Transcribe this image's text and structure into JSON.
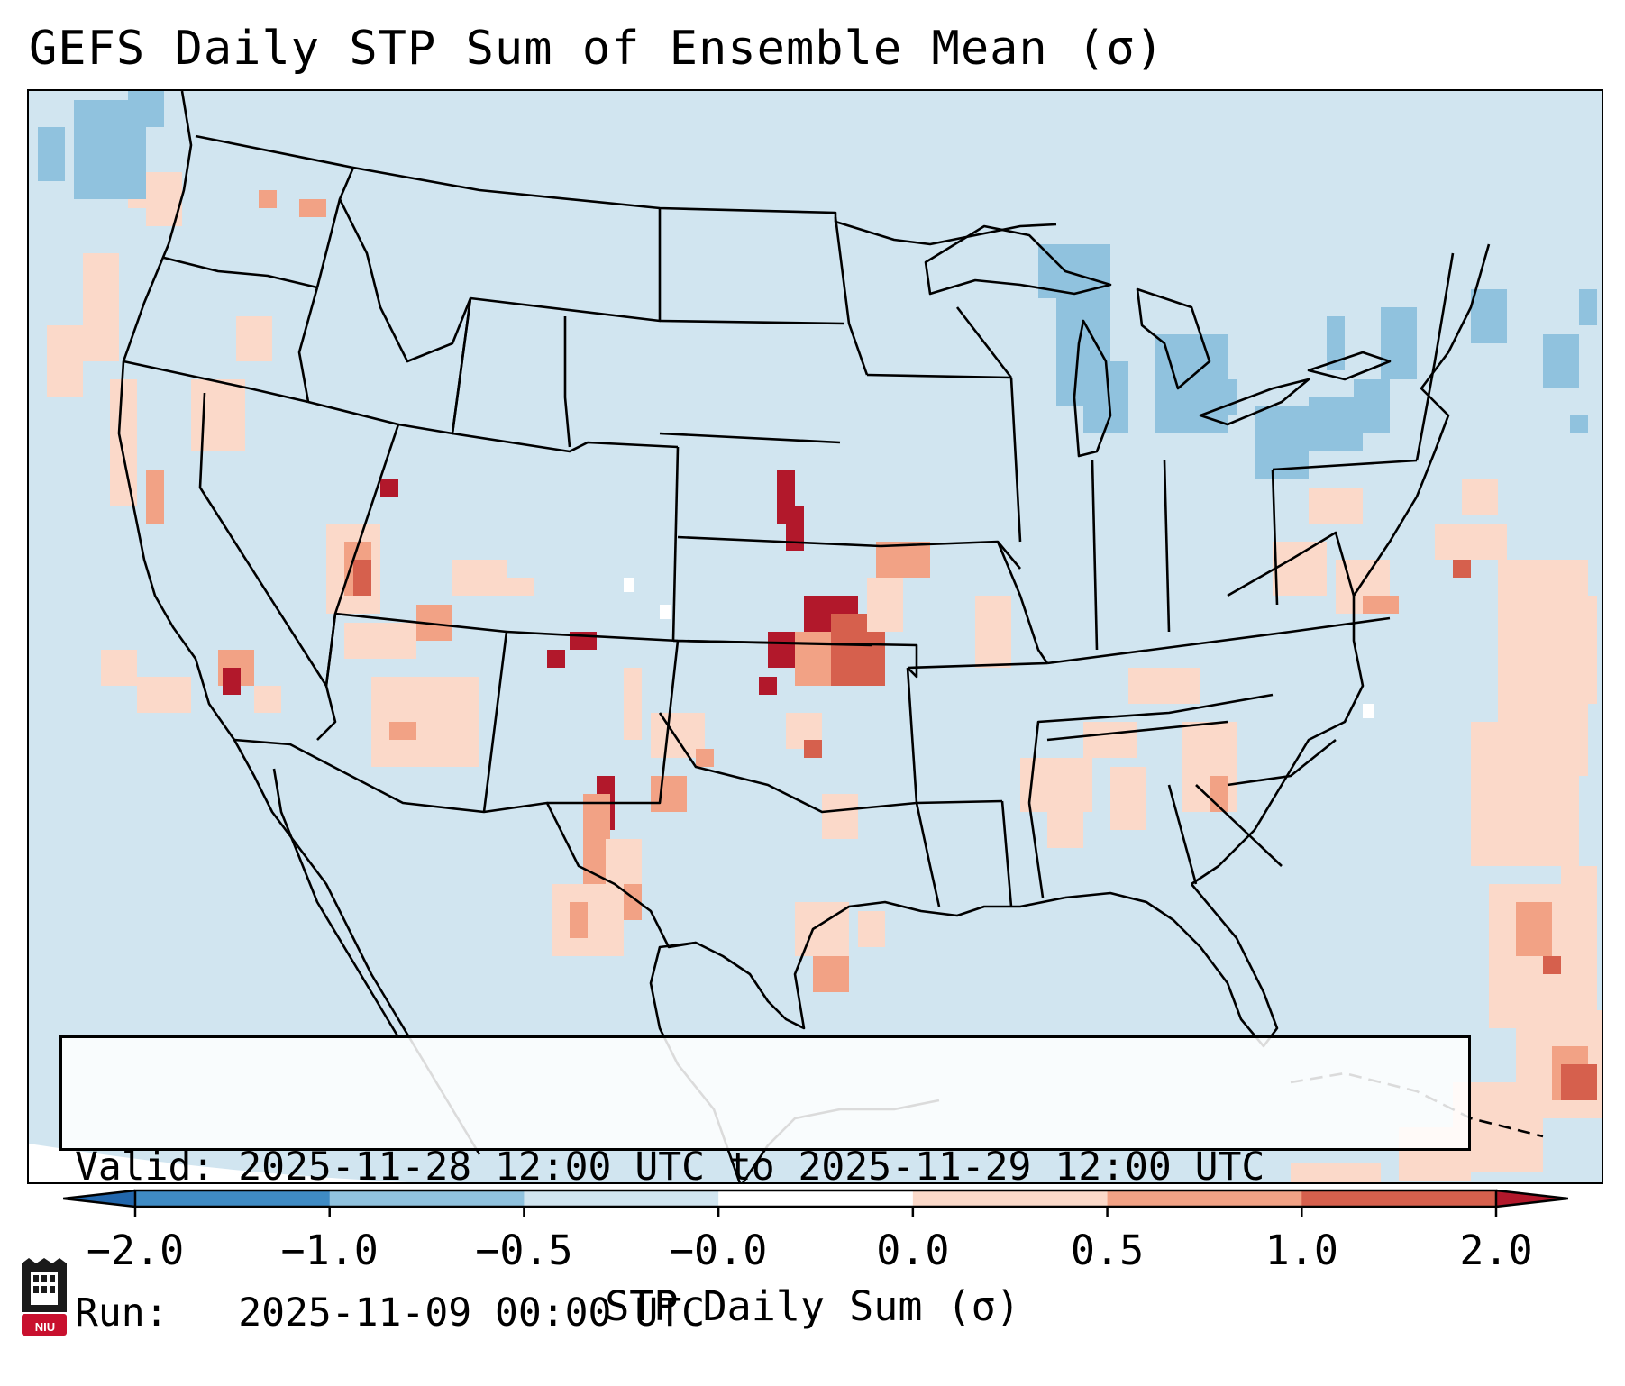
{
  "title": "GEFS Daily STP Sum of Ensemble Mean (σ)",
  "info": {
    "valid_line": "Valid: 2025-11-28 12:00 UTC to 2025-11-29 12:00 UTC",
    "run_line": "Run:   2025-11-09 00:00 UTC"
  },
  "colorbar": {
    "label": "STP Daily Sum (σ)",
    "ticks": [
      "−2.0",
      "−1.0",
      "−0.5",
      "−0.0",
      "0.0",
      "0.5",
      "1.0",
      "2.0"
    ],
    "bins": [
      {
        "range": "-2.0 to -1.0",
        "color": "#3f8bc4"
      },
      {
        "range": "-1.0 to -0.5",
        "color": "#90c2de"
      },
      {
        "range": "-0.5 to -0.0",
        "color": "#d1e5f0"
      },
      {
        "range": "-0.0 to 0.0",
        "color": "#ffffff"
      },
      {
        "range": "0.0 to 0.5",
        "color": "#fbd9c9"
      },
      {
        "range": "0.5 to 1.0",
        "color": "#f2a285"
      },
      {
        "range": "1.0 to 2.0",
        "color": "#d6604d"
      },
      {
        "range": "> 2.0",
        "color": "#b2182b"
      }
    ],
    "under_color": "#2166ac",
    "over_color": "#b2182b"
  },
  "colors": {
    "background_field": "#d1e5f0",
    "outside_domain": "#ffffff",
    "boundaries": "#000000"
  },
  "logo": {
    "text": "NIU",
    "primary_color": "#c8102e"
  }
}
